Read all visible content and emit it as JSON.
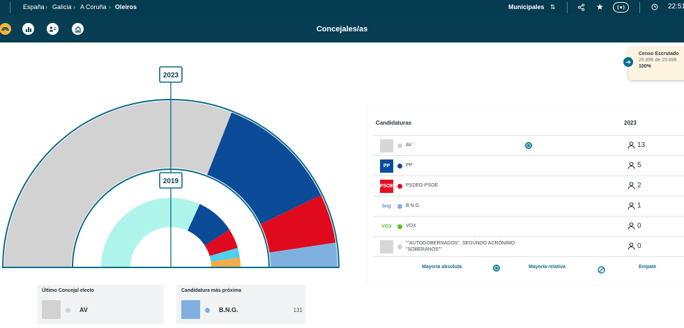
{
  "breadcrumb": [
    "España",
    "Galicia",
    "A Coruña",
    "Oleiros"
  ],
  "topbar": {
    "election": "Municipales",
    "time": "22:51"
  },
  "view_title": "Concejales/as",
  "censo": {
    "title": "Censo Escrutado",
    "count": "29.896 de 29.898",
    "percent": "100%"
  },
  "years": {
    "outer": "2023",
    "inner": "2019"
  },
  "table": {
    "header_candidacies": "Candidaturas",
    "header_year": "2023",
    "rows": [
      {
        "logo": "",
        "logo_bg": "#d7d7d7",
        "logo_color": "#ffffff",
        "dot": "#d2d2d2",
        "name": "AV",
        "seats": "13",
        "majority": true
      },
      {
        "logo": "PP",
        "logo_bg": "#0a4d9c",
        "logo_color": "#ffffff",
        "dot": "#0b4b98",
        "name": "PP",
        "seats": "5",
        "majority": false
      },
      {
        "logo": "PSOE",
        "logo_bg": "#e3101d",
        "logo_color": "#ffffff",
        "dot": "#df0a1e",
        "name": "PSDEG-PSOE",
        "seats": "2",
        "majority": false
      },
      {
        "logo": "bng",
        "logo_bg": "#ffffff",
        "logo_color": "#6a8fc9",
        "dot": "#7fb0e0",
        "name": "B.N.G.",
        "seats": "1",
        "majority": false
      },
      {
        "logo": "VOX",
        "logo_bg": "#ffffff",
        "logo_color": "#5fb92e",
        "dot": "#5ac12a",
        "name": "VOX",
        "seats": "0",
        "majority": false
      },
      {
        "logo": "",
        "logo_bg": "#d7d7d7",
        "logo_color": "#ffffff",
        "dot": "#d2d2d2",
        "name": "\"\"AUTOGOBERNADOS\", SEGÚNDO ACRÓNIMO \"SOBERANOS\"\"",
        "seats": "0",
        "majority": false
      }
    ],
    "legend": {
      "absolute": "Mayoría absoluta",
      "relative": "Mayoría relativa",
      "tie": "Empate"
    }
  },
  "chart_data": [
    {
      "type": "pie",
      "title": "2023",
      "categories": [
        "AV",
        "PP",
        "PSDEG-PSOE",
        "B.N.G.",
        "VOX"
      ],
      "values": [
        13,
        5,
        2,
        1,
        0
      ],
      "colors": [
        "#d2d2d2",
        "#0b4b98",
        "#df0a1e",
        "#7fb0e0",
        "#5ac12a"
      ]
    },
    {
      "type": "pie",
      "title": "2019",
      "categories": [
        "AV",
        "PP",
        "PSDEG-PSOE",
        "",
        ""
      ],
      "values": [
        14,
        4,
        2,
        1,
        1
      ],
      "colors": [
        "#aef4ea",
        "#0b4b98",
        "#df0a1e",
        "#4fd0ef",
        "#f3ad48"
      ]
    }
  ],
  "cards": {
    "last_elected": {
      "title": "Último Concejal electo",
      "name": "AV",
      "color": "#d2d2d2",
      "dot": "#d2d2d2"
    },
    "closest": {
      "title": "Candidatura más próxima",
      "name": "B.N.G.",
      "value": "131",
      "color": "#7fb0e0",
      "dot": "#7fb0e0"
    }
  }
}
